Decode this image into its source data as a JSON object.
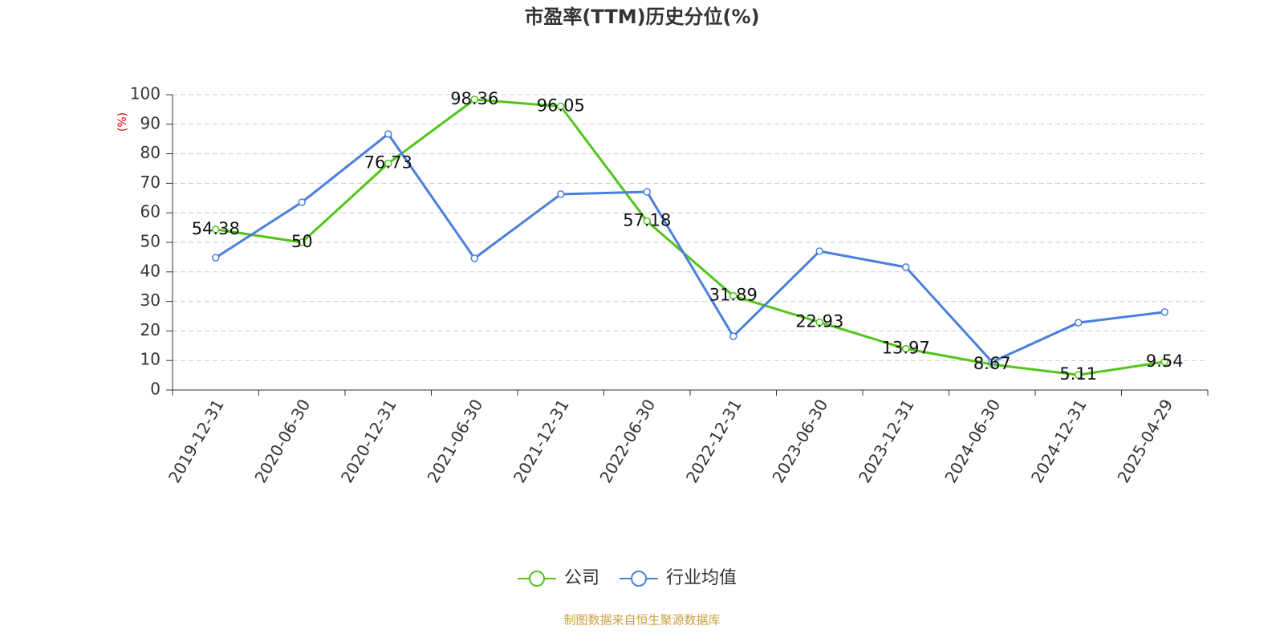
{
  "chart_data": {
    "type": "line",
    "title": "市盈率(TTM)历史分位(%)",
    "y_label": "(%)",
    "source": "制图数据来自恒生聚源数据库",
    "categories": [
      "2019-12-31",
      "2020-06-30",
      "2020-12-31",
      "2021-06-30",
      "2021-12-31",
      "2022-06-30",
      "2022-12-31",
      "2023-06-30",
      "2023-12-31",
      "2024-06-30",
      "2024-12-31",
      "2025-04-29"
    ],
    "series": [
      {
        "name": "公司",
        "color": "#52c41a",
        "values": [
          54.38,
          50,
          76.73,
          98.36,
          96.05,
          57.18,
          31.89,
          22.93,
          13.97,
          8.67,
          5.11,
          9.54
        ],
        "show_labels": true
      },
      {
        "name": "行业均值",
        "color": "#4a7fdc",
        "values": [
          44.8,
          63.6,
          86.7,
          44.6,
          66.3,
          67.1,
          18.2,
          47.0,
          41.6,
          9.5,
          22.8,
          26.4
        ],
        "show_labels": false
      }
    ],
    "ylim": [
      0,
      100
    ],
    "yticks": [
      0,
      10,
      20,
      30,
      40,
      50,
      60,
      70,
      80,
      90,
      100
    ],
    "grid": true
  }
}
